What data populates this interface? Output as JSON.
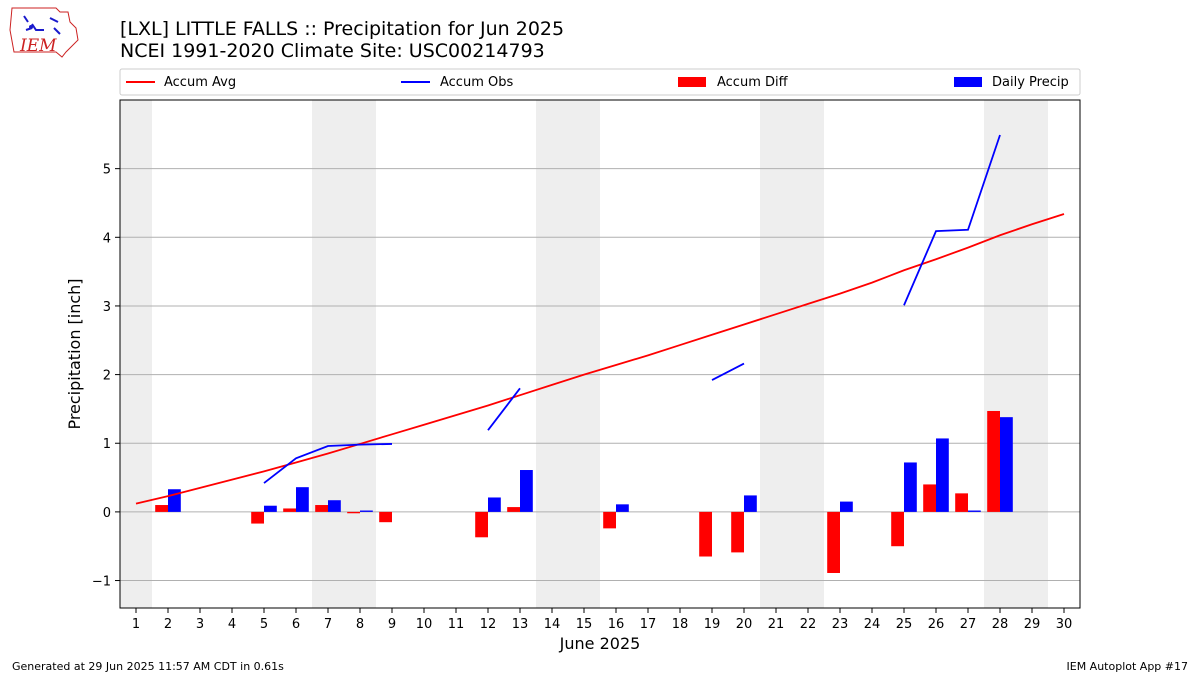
{
  "logo": {
    "text": "IEM"
  },
  "footer": {
    "left": "Generated at 29 Jun 2025 11:57 AM CDT in 0.61s",
    "right": "IEM Autoplot App #17"
  },
  "chart_data": {
    "type": "bar",
    "title": "[LXL] LITTLE FALLS :: Precipitation for Jun 2025",
    "subtitle": "NCEI 1991-2020 Climate Site: USC00214793",
    "xlabel": "June 2025",
    "ylabel": "Precipitation [inch]",
    "xlim": [
      0.5,
      30.5
    ],
    "ylim": [
      -1.4,
      6.0
    ],
    "yticks": [
      -1,
      0,
      1,
      2,
      3,
      4,
      5
    ],
    "ytick_labels": [
      "−1",
      "0",
      "1",
      "2",
      "3",
      "4",
      "5"
    ],
    "xticks": [
      1,
      2,
      3,
      4,
      5,
      6,
      7,
      8,
      9,
      10,
      11,
      12,
      13,
      14,
      15,
      16,
      17,
      18,
      19,
      20,
      21,
      22,
      23,
      24,
      25,
      26,
      27,
      28,
      29,
      30
    ],
    "xtick_labels": [
      "1",
      "2",
      "3",
      "4",
      "5",
      "6",
      "7",
      "8",
      "9",
      "10",
      "11",
      "12",
      "13",
      "14",
      "15",
      "16",
      "17",
      "18",
      "19",
      "20",
      "21",
      "22",
      "23",
      "24",
      "25",
      "26",
      "27",
      "28",
      "29",
      "30"
    ],
    "grid": "horizontal",
    "legend_placement": "top",
    "weekend_shading": [
      [
        0.5,
        1.5
      ],
      [
        6.5,
        8.5
      ],
      [
        13.5,
        15.5
      ],
      [
        20.5,
        22.5
      ],
      [
        27.5,
        29.5
      ]
    ],
    "shade_color": "#eeeeee",
    "series": [
      {
        "name": "Accum Avg",
        "kind": "line",
        "color": "#ff0000",
        "x": [
          1,
          2,
          3,
          4,
          5,
          6,
          7,
          8,
          9,
          10,
          11,
          12,
          13,
          14,
          15,
          16,
          17,
          18,
          19,
          20,
          21,
          22,
          23,
          24,
          25,
          26,
          27,
          28,
          29,
          30
        ],
        "values": [
          0.12,
          0.23,
          0.35,
          0.47,
          0.59,
          0.72,
          0.85,
          0.99,
          1.13,
          1.27,
          1.41,
          1.55,
          1.7,
          1.85,
          2.0,
          2.14,
          2.28,
          2.43,
          2.58,
          2.73,
          2.88,
          3.03,
          3.18,
          3.34,
          3.52,
          3.68,
          3.85,
          4.03,
          4.19,
          4.34
        ]
      },
      {
        "name": "Accum Obs",
        "kind": "line",
        "color": "#0000ff",
        "segments": [
          {
            "x": [
              5,
              6,
              7,
              8,
              9
            ],
            "values": [
              0.42,
              0.78,
              0.96,
              0.98,
              0.99
            ]
          },
          {
            "x": [
              12,
              13
            ],
            "values": [
              1.19,
              1.8
            ]
          },
          {
            "x": [
              19,
              20
            ],
            "values": [
              1.92,
              2.16
            ]
          },
          {
            "x": [
              25,
              26,
              27,
              28
            ],
            "values": [
              3.01,
              4.09,
              4.11,
              5.49
            ]
          }
        ]
      },
      {
        "name": "Accum Diff",
        "kind": "bar",
        "color": "#ff0000",
        "x": [
          2,
          5,
          6,
          7,
          8,
          9,
          12,
          13,
          16,
          19,
          20,
          23,
          25,
          26,
          27,
          28
        ],
        "values": [
          0.1,
          -0.17,
          0.05,
          0.1,
          -0.02,
          -0.15,
          -0.37,
          0.07,
          -0.24,
          -0.65,
          -0.59,
          -0.89,
          -0.5,
          0.4,
          0.27,
          1.47
        ]
      },
      {
        "name": "Daily Precip",
        "kind": "bar",
        "color": "#0000ff",
        "x": [
          2,
          5,
          6,
          7,
          8,
          12,
          13,
          16,
          20,
          23,
          25,
          26,
          27,
          28
        ],
        "values": [
          0.33,
          0.09,
          0.36,
          0.17,
          0.02,
          0.21,
          0.61,
          0.11,
          0.24,
          0.15,
          0.72,
          1.07,
          0.02,
          1.38
        ]
      }
    ]
  }
}
